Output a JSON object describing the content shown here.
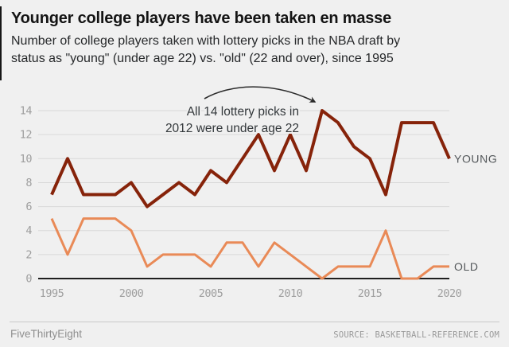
{
  "header": {
    "title": "Younger college players have been taken en masse",
    "subtitle_line1": "Number of college players taken with lottery picks in the NBA draft by",
    "subtitle_line2": "status as \"young\" (under age 22) vs. \"old\" (22 and over), since 1995"
  },
  "chart_data": {
    "type": "line",
    "title": "Younger college players have been taken en masse",
    "xlabel": "",
    "ylabel": "",
    "x": [
      1995,
      1996,
      1997,
      1998,
      1999,
      2000,
      2001,
      2002,
      2003,
      2004,
      2005,
      2006,
      2007,
      2008,
      2009,
      2010,
      2011,
      2012,
      2013,
      2014,
      2015,
      2016,
      2017,
      2018,
      2019,
      2020
    ],
    "series": [
      {
        "name": "YOUNG",
        "color": "#86230a",
        "stroke_width": 4,
        "values": [
          7,
          10,
          7,
          7,
          7,
          8,
          6,
          7,
          8,
          7,
          9,
          8,
          10,
          12,
          9,
          12,
          9,
          14,
          13,
          11,
          10,
          7,
          13,
          13,
          13,
          10
        ]
      },
      {
        "name": "OLD",
        "color": "#e98a57",
        "stroke_width": 3,
        "values": [
          5,
          2,
          5,
          5,
          5,
          4,
          1,
          2,
          2,
          2,
          1,
          3,
          3,
          1,
          3,
          2,
          1,
          0,
          1,
          1,
          1,
          4,
          0,
          0,
          1,
          1
        ]
      }
    ],
    "ylim": [
      0,
      14
    ],
    "yticks": [
      0,
      2,
      4,
      6,
      8,
      10,
      12,
      14
    ],
    "xticks": [
      1995,
      2000,
      2005,
      2010,
      2015,
      2020
    ],
    "grid": true,
    "legend_position": "right-of-line-ends",
    "annotation": {
      "line1": "All 14 lottery picks in",
      "line2": "2012 were under age 22",
      "target_year": 2012,
      "target_value": 14
    }
  },
  "footer": {
    "brand": "FiveThirtyEight",
    "source": "SOURCE: BASKETBALL-REFERENCE.COM"
  },
  "colors": {
    "background": "#f0f0f0",
    "young": "#86230a",
    "old": "#e98a57",
    "grid": "#d9d9d9",
    "axis": "#1f1f1f",
    "tick_label": "#9e9e9e",
    "legend_label": "#53575a",
    "annotation_text": "#33383b",
    "arrow": "#2b2b2b"
  }
}
